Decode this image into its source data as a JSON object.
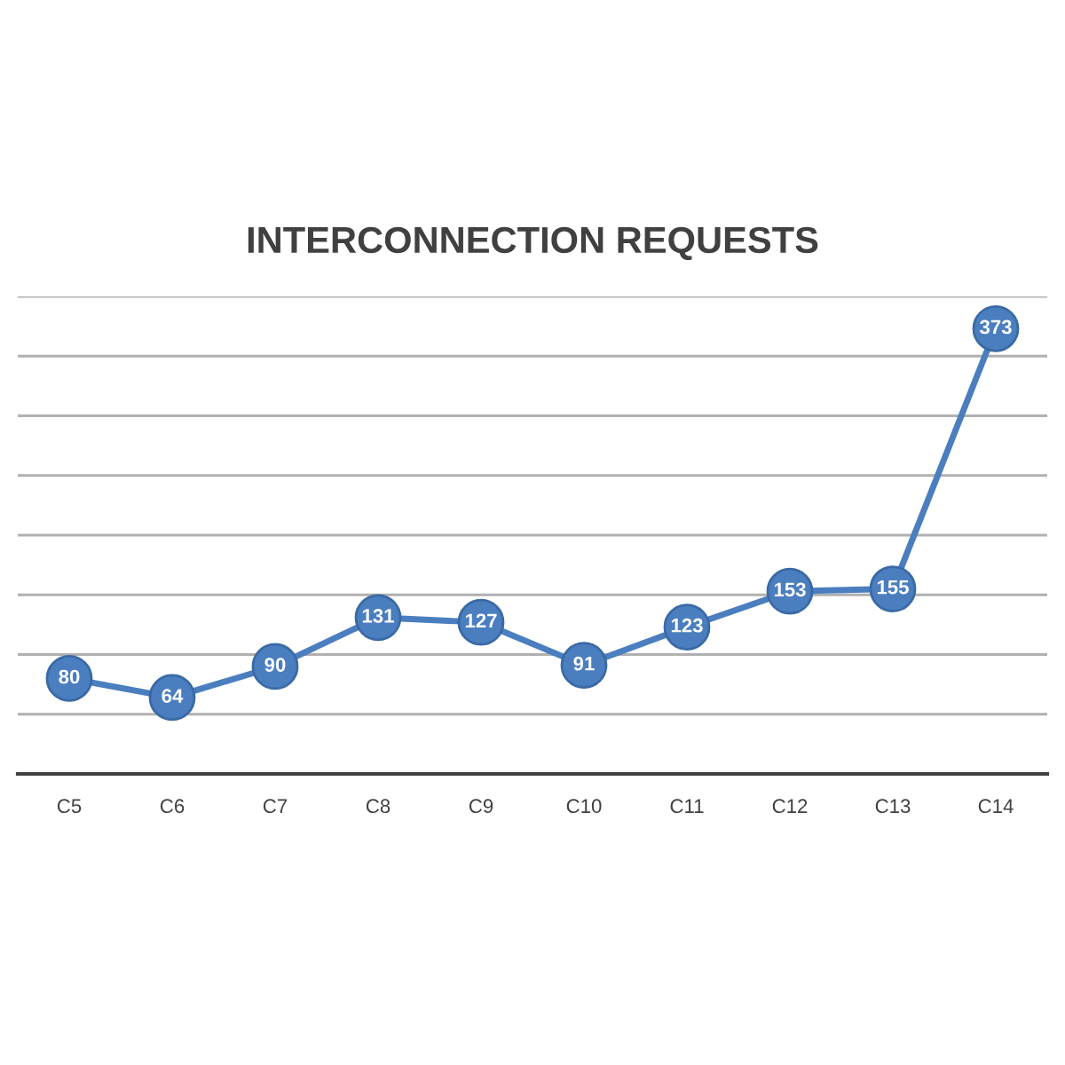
{
  "chart_data": {
    "type": "line",
    "title": "INTERCONNECTION REQUESTS",
    "categories": [
      "C5",
      "C6",
      "C7",
      "C8",
      "C9",
      "C10",
      "C11",
      "C12",
      "C13",
      "C14"
    ],
    "series": [
      {
        "color": "#4a7ebf",
        "values": [
          80,
          64,
          90,
          131,
          127,
          91,
          123,
          153,
          155,
          373
        ]
      }
    ],
    "ylim": [
      0,
      400
    ],
    "yticks": [
      {
        "value": 0,
        "label": null
      },
      {
        "value": 50,
        "label": null
      },
      {
        "value": 100,
        "label": null
      },
      {
        "value": 150,
        "label": null
      },
      {
        "value": 200,
        "label": null
      },
      {
        "value": 250,
        "label": null
      },
      {
        "value": 300,
        "label": null
      },
      {
        "value": 350,
        "label": null
      },
      {
        "value": 400,
        "label": null
      }
    ],
    "tick_labels": "x",
    "grid": "y",
    "marker": "circle",
    "line_style": "solid",
    "data_labels": true
  }
}
